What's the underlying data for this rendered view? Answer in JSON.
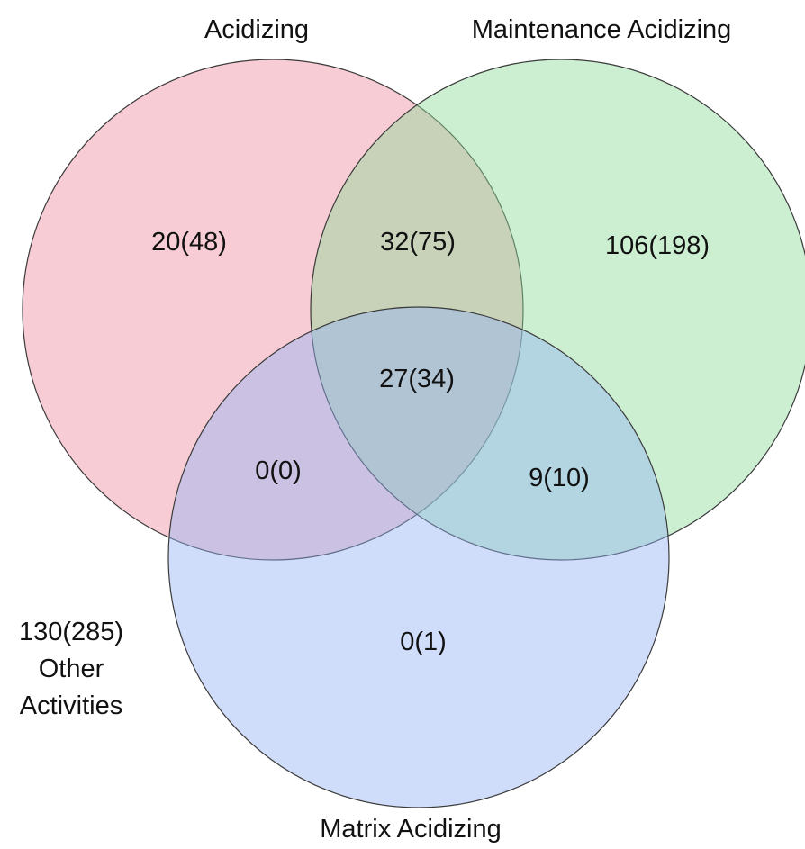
{
  "sets": {
    "acidizing": {
      "title": "Acidizing",
      "color": "#f08ea0"
    },
    "maintenance": {
      "title": "Maintenance Acidizing",
      "color": "#8ed99a"
    },
    "matrix": {
      "title": "Matrix Acidizing",
      "color": "#94b3f5"
    }
  },
  "regions": {
    "acidizing_only": "20(48)",
    "acidizing_maintenance": "32(75)",
    "maintenance_only": "106(198)",
    "all_three": "27(34)",
    "acidizing_matrix": "0(0)",
    "maintenance_matrix": "9(10)",
    "matrix_only": "0(1)"
  },
  "outside": {
    "count": "130(285)",
    "line1": "Other",
    "line2": "Activities"
  }
}
